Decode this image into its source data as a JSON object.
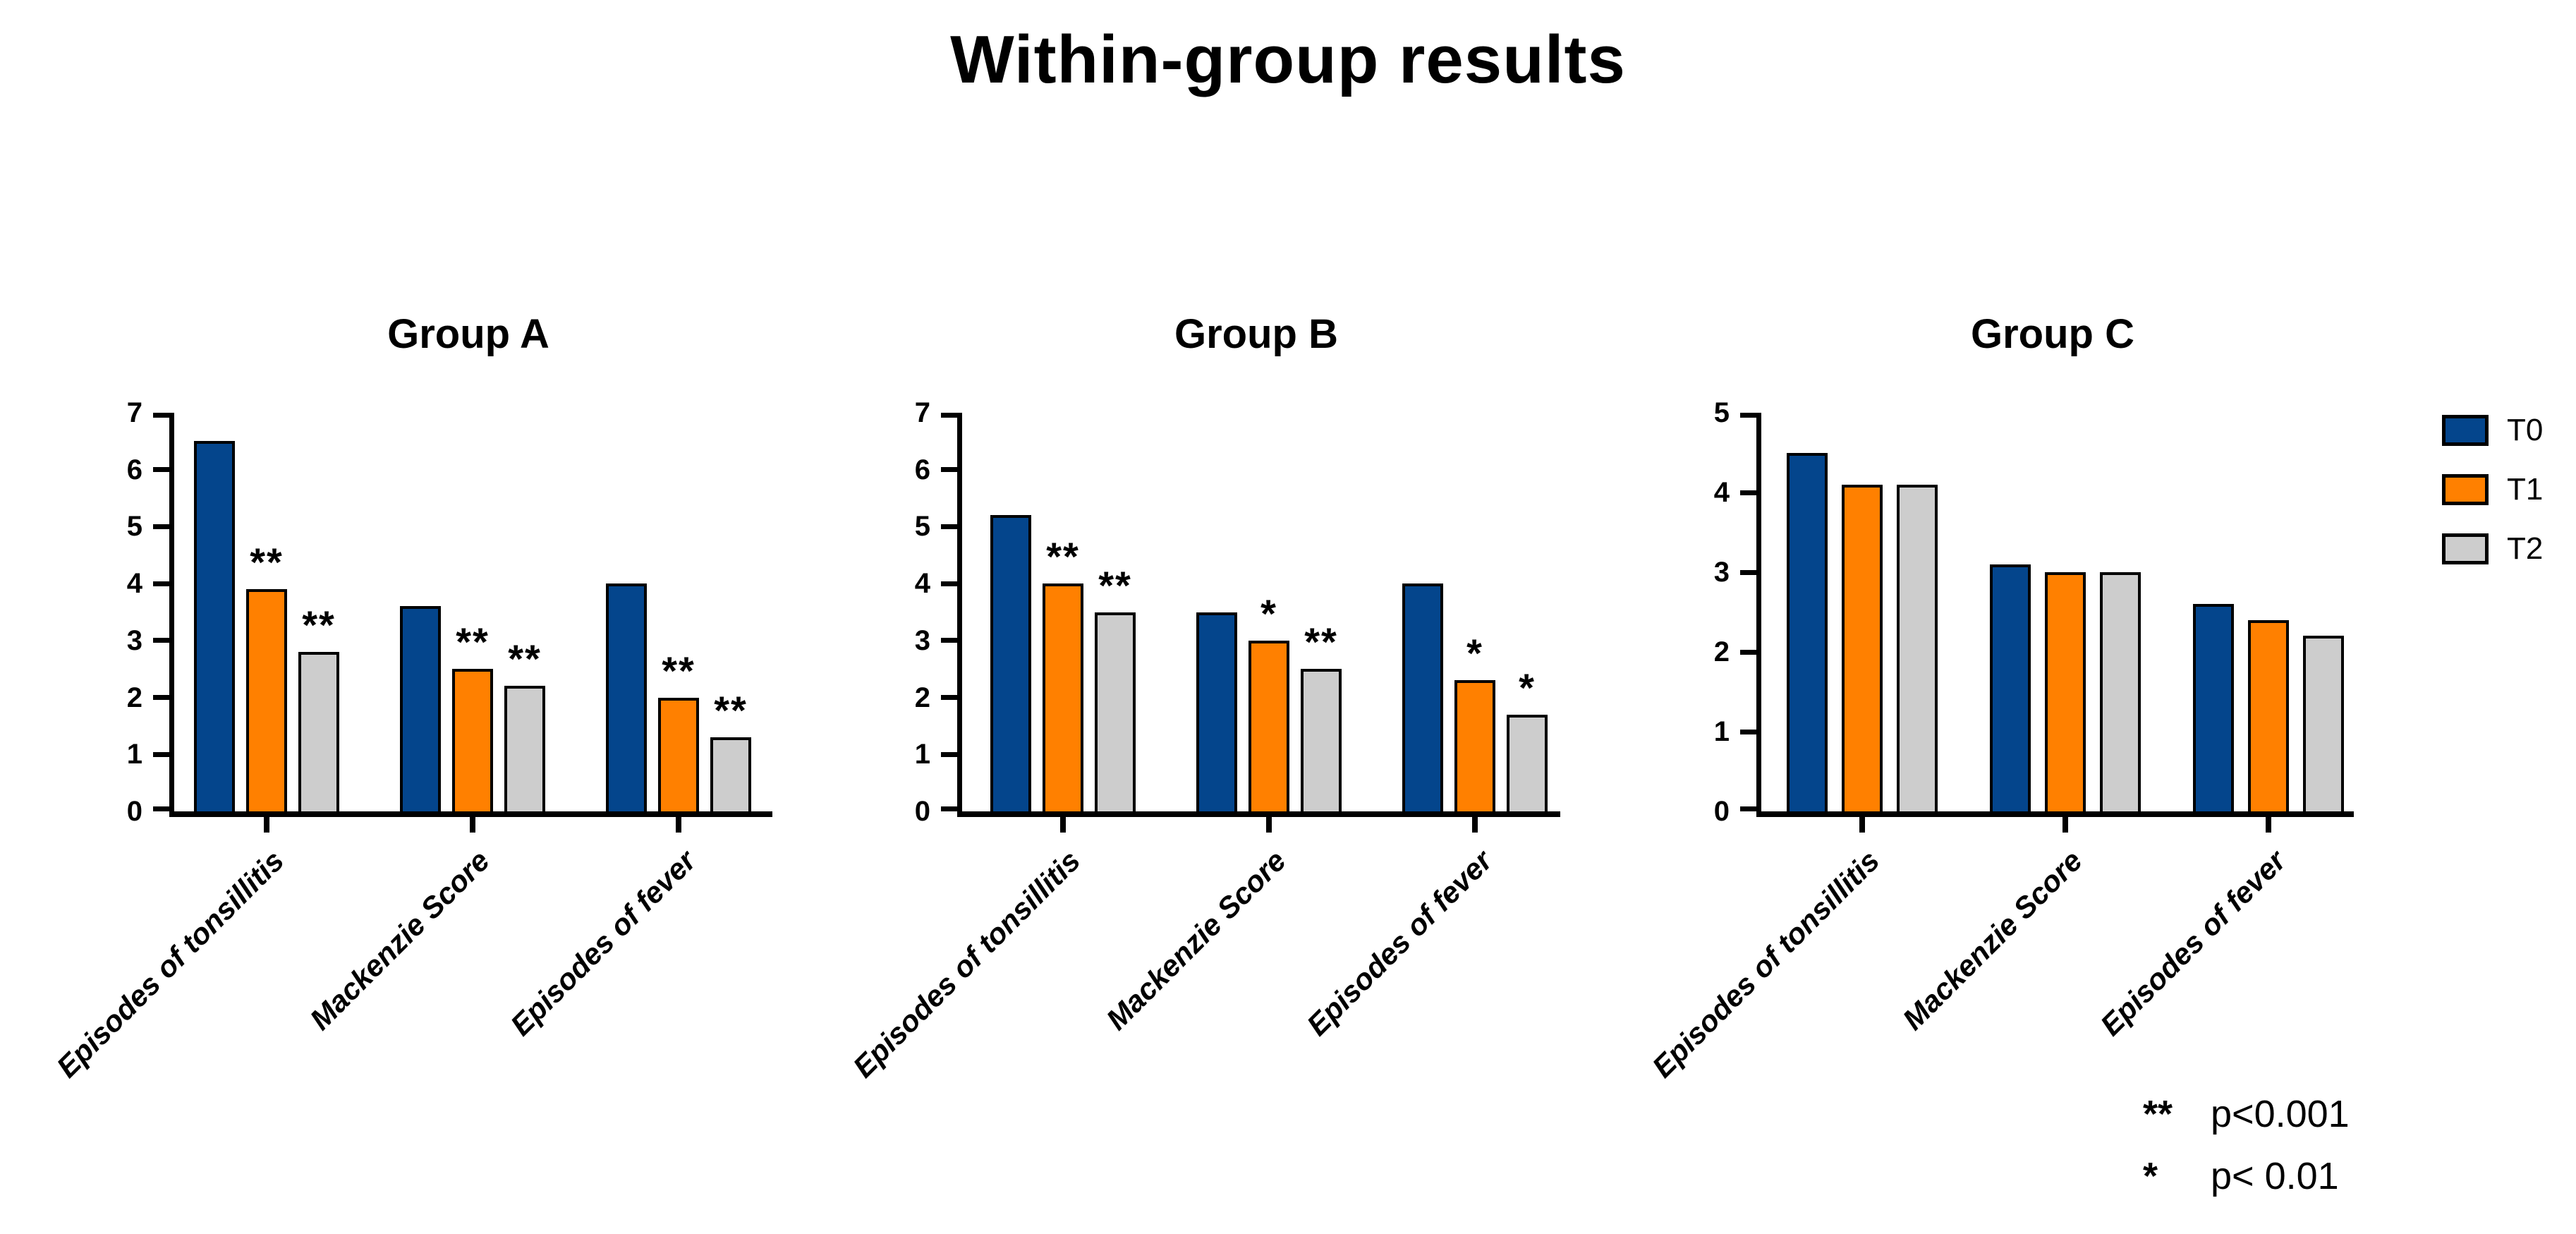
{
  "title": "Within-group results",
  "legend": {
    "position": "top-right",
    "items": [
      {
        "label": "T0",
        "color": "#04458c"
      },
      {
        "label": "T1",
        "color": "#ff8000"
      },
      {
        "label": "T2",
        "color": "#cdcdcd"
      }
    ]
  },
  "significance_note": [
    {
      "symbol": "**",
      "text": "p<0.001"
    },
    {
      "symbol": "*",
      "text": "p< 0.01"
    }
  ],
  "chart_data": [
    {
      "type": "bar",
      "title": "Group A",
      "ylim": [
        0,
        7
      ],
      "yticks": [
        0,
        1,
        2,
        3,
        4,
        5,
        6,
        7
      ],
      "grid": false,
      "categories": [
        "Episodes of tonsillitis",
        "Mackenzie Score",
        "Episodes of fever"
      ],
      "series": [
        {
          "name": "T0",
          "color": "#04458c",
          "values": [
            6.5,
            3.6,
            4.0
          ],
          "stars": [
            "",
            "",
            ""
          ]
        },
        {
          "name": "T1",
          "color": "#ff8000",
          "values": [
            3.9,
            2.5,
            2.0
          ],
          "stars": [
            "**",
            "**",
            "**"
          ]
        },
        {
          "name": "T2",
          "color": "#cdcdcd",
          "values": [
            2.8,
            2.2,
            1.3
          ],
          "stars": [
            "**",
            "**",
            "**"
          ]
        }
      ]
    },
    {
      "type": "bar",
      "title": "Group B",
      "ylim": [
        0,
        7
      ],
      "yticks": [
        0,
        1,
        2,
        3,
        4,
        5,
        6,
        7
      ],
      "grid": false,
      "categories": [
        "Episodes of tonsillitis",
        "Mackenzie Score",
        "Episodes of fever"
      ],
      "series": [
        {
          "name": "T0",
          "color": "#04458c",
          "values": [
            5.2,
            3.5,
            4.0
          ],
          "stars": [
            "",
            "",
            ""
          ]
        },
        {
          "name": "T1",
          "color": "#ff8000",
          "values": [
            4.0,
            3.0,
            2.3
          ],
          "stars": [
            "**",
            "*",
            "*"
          ]
        },
        {
          "name": "T2",
          "color": "#cdcdcd",
          "values": [
            3.5,
            2.5,
            1.7
          ],
          "stars": [
            "**",
            "**",
            "*"
          ]
        }
      ]
    },
    {
      "type": "bar",
      "title": "Group C",
      "ylim": [
        0,
        5
      ],
      "yticks": [
        0,
        1,
        2,
        3,
        4,
        5
      ],
      "grid": false,
      "categories": [
        "Episodes of tonsillitis",
        "Mackenzie Score",
        "Episodes of fever"
      ],
      "series": [
        {
          "name": "T0",
          "color": "#04458c",
          "values": [
            4.5,
            3.1,
            2.6
          ],
          "stars": [
            "",
            "",
            ""
          ]
        },
        {
          "name": "T1",
          "color": "#ff8000",
          "values": [
            4.1,
            3.0,
            2.4
          ],
          "stars": [
            "",
            "",
            ""
          ]
        },
        {
          "name": "T2",
          "color": "#cdcdcd",
          "values": [
            4.1,
            3.0,
            2.2
          ],
          "stars": [
            "",
            "",
            ""
          ]
        }
      ]
    }
  ]
}
